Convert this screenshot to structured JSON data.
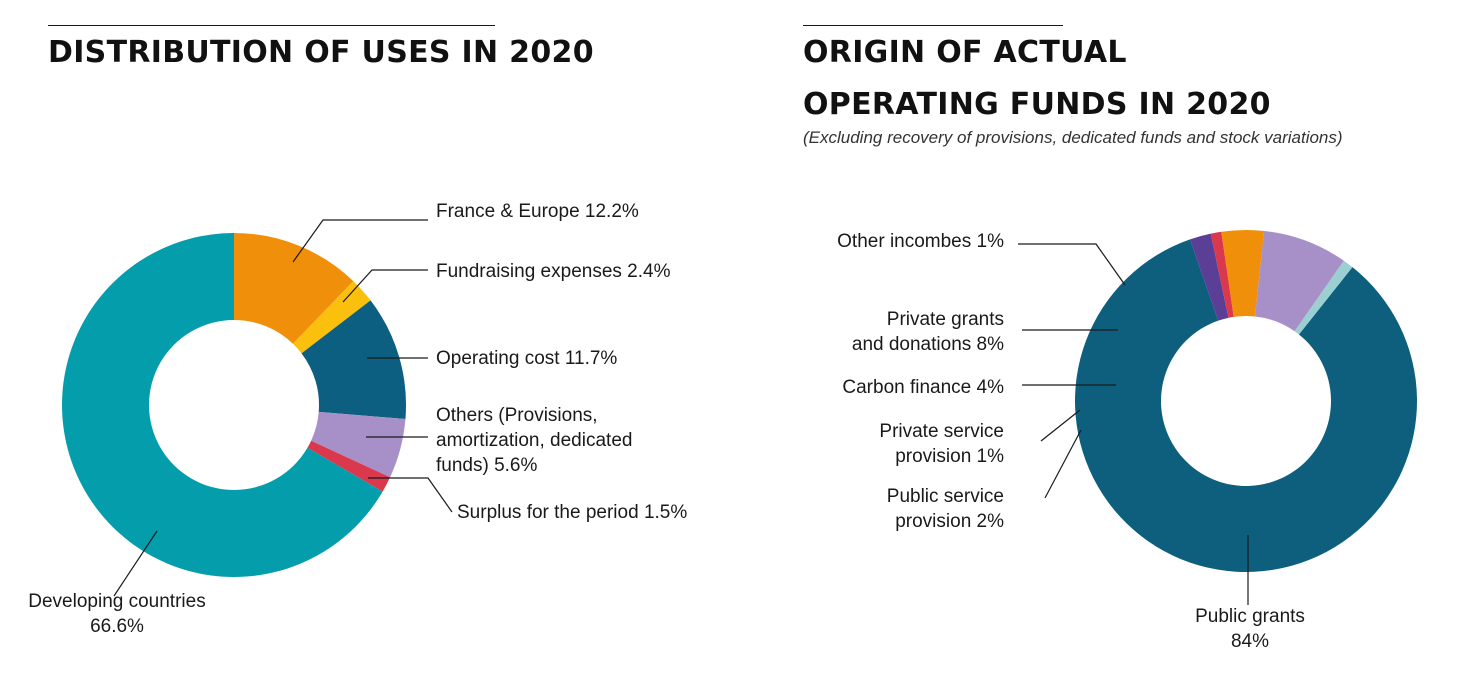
{
  "charts": [
    {
      "title_lines": [
        "DISTRIBUTION OF USES IN 2020"
      ]
    },
    {
      "title_lines": [
        "ORIGIN OF ACTUAL",
        "OPERATING FUNDS IN 2020"
      ],
      "subtitle": "(Excluding recovery of provisions, dedicated funds and stock variations)"
    }
  ],
  "labels": {
    "c1": {
      "france": "France & Europe 12.2%",
      "fundraising": "Fundraising expenses 2.4%",
      "operating": "Operating cost 11.7%",
      "others_1": "Others (Provisions,",
      "others_2": "amortization, dedicated",
      "others_3": "funds) 5.6%",
      "surplus": "Surplus for the period 1.5%",
      "developing_1": "Developing countries",
      "developing_2": "66.6%"
    },
    "c2": {
      "other_income": "Other incombes 1%",
      "private_grants_1": "Private grants",
      "private_grants_2": "and donations 8%",
      "carbon": "Carbon finance 4%",
      "private_service_1": "Private service",
      "private_service_2": "provision 1%",
      "public_service_1": "Public service",
      "public_service_2": "provision 2%",
      "public_grants_1": "Public grants",
      "public_grants_2": "84%"
    }
  },
  "chart_data": [
    {
      "type": "pie",
      "title": "DISTRIBUTION OF USES IN 2020",
      "categories": [
        "France & Europe",
        "Fundraising expenses",
        "Operating cost",
        "Others (Provisions, amortization, dedicated funds)",
        "Surplus for the period",
        "Developing countries"
      ],
      "values": [
        12.2,
        2.4,
        11.7,
        5.6,
        1.5,
        66.6
      ],
      "colors": [
        "#f0900a",
        "#fbbf0d",
        "#0d5f82",
        "#a790c8",
        "#d9384d",
        "#049dac"
      ],
      "donut": true
    },
    {
      "type": "pie",
      "title": "ORIGIN OF ACTUAL OPERATING FUNDS IN 2020",
      "subtitle": "(Excluding recovery of provisions, dedicated funds and stock variations)",
      "categories": [
        "Public grants",
        "Public service provision",
        "Private service provision",
        "Carbon finance",
        "Private grants and donations",
        "Other incombes"
      ],
      "values": [
        84,
        2,
        1,
        4,
        8,
        1
      ],
      "colors": [
        "#0d5f7d",
        "#5b3e96",
        "#d9384d",
        "#f0900a",
        "#a790c8",
        "#9ccfd1"
      ],
      "donut": true
    }
  ]
}
